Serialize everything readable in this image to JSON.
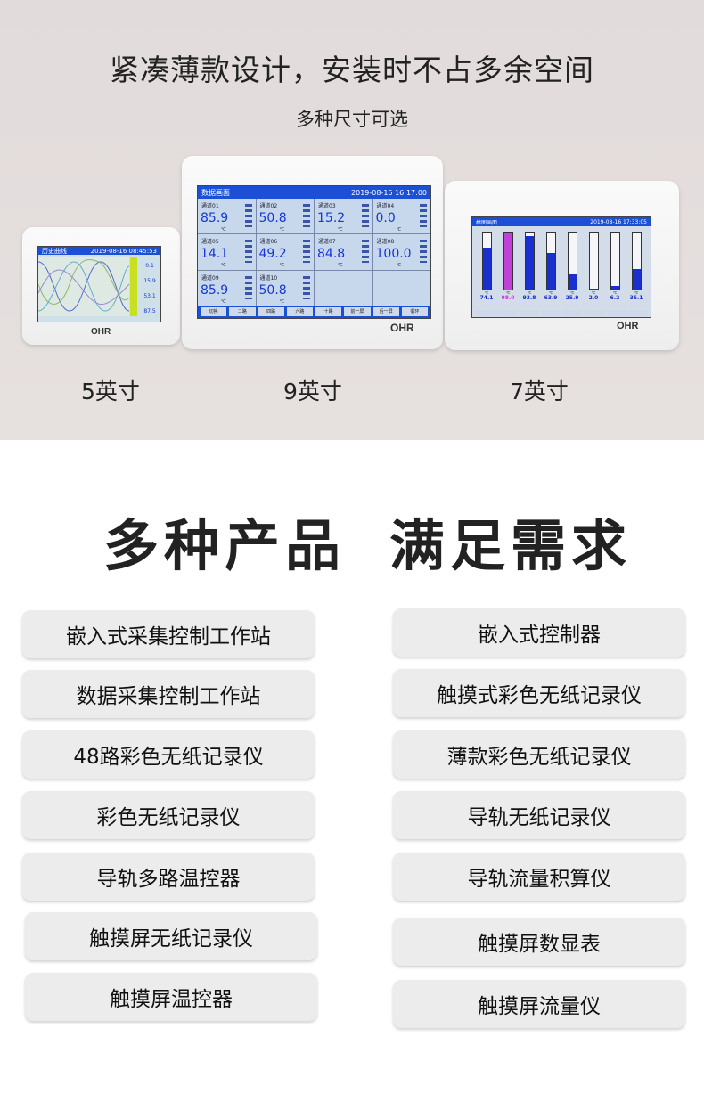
{
  "header": {
    "title": "紧凑薄款设计，安装时不占多余空间",
    "subtitle": "多种尺寸可选"
  },
  "devices": [
    {
      "size_label": "5英寸",
      "brand": "OHR",
      "screen_title": "历史曲线",
      "datetime": "2019-08-16 08:45:53",
      "readings": [
        "0.1",
        "15.9",
        "53.1",
        "87.5"
      ]
    },
    {
      "size_label": "9英寸",
      "brand": "OHR",
      "screen_title": "数据画面",
      "datetime": "2019-08-16 16:17:00",
      "channels": [
        {
          "name": "通道01",
          "value": "85.9"
        },
        {
          "name": "通道02",
          "value": "50.8"
        },
        {
          "name": "通道03",
          "value": "15.2"
        },
        {
          "name": "通道04",
          "value": "0.0"
        },
        {
          "name": "通道05",
          "value": "14.1"
        },
        {
          "name": "通道06",
          "value": "49.2"
        },
        {
          "name": "通道07",
          "value": "84.8"
        },
        {
          "name": "通道08",
          "value": "100.0"
        },
        {
          "name": "通道09",
          "value": "85.9"
        },
        {
          "name": "通道10",
          "value": "50.8"
        }
      ],
      "unit": "℃",
      "buttons": [
        "切换",
        "二路",
        "四路",
        "六路",
        "十路",
        "前一屏",
        "后一屏",
        "循环"
      ]
    },
    {
      "size_label": "7英寸",
      "brand": "OHR",
      "screen_title": "棒图画面",
      "datetime": "2019-08-16 17:33:05",
      "bars": [
        {
          "value": "74.1",
          "fill": 74.1,
          "color": "#1a2fd0"
        },
        {
          "value": "98.0",
          "fill": 98.0,
          "color": "#c040d8"
        },
        {
          "value": "93.8",
          "fill": 93.8,
          "color": "#1a2fd0"
        },
        {
          "value": "63.9",
          "fill": 63.9,
          "color": "#1a2fd0"
        },
        {
          "value": "25.9",
          "fill": 25.9,
          "color": "#1a2fd0"
        },
        {
          "value": "2.0",
          "fill": 2.0,
          "color": "#1a2fd0"
        },
        {
          "value": "6.2",
          "fill": 6.2,
          "color": "#1a2fd0"
        },
        {
          "value": "36.1",
          "fill": 36.1,
          "color": "#1a2fd0"
        }
      ]
    }
  ],
  "section": {
    "title_left": "多种产品",
    "title_right": "满足需求"
  },
  "products_left": [
    "嵌入式采集控制工作站",
    "数据采集控制工作站",
    "48路彩色无纸记录仪",
    "彩色无纸记录仪",
    "导轨多路温控器",
    "触摸屏无纸记录仪",
    "触摸屏温控器"
  ],
  "products_right": [
    "嵌入式控制器",
    "触摸式彩色无纸记录仪",
    "薄款彩色无纸记录仪",
    "导轨无纸记录仪",
    "导轨流量积算仪",
    "触摸屏数显表",
    "触摸屏流量仪"
  ]
}
